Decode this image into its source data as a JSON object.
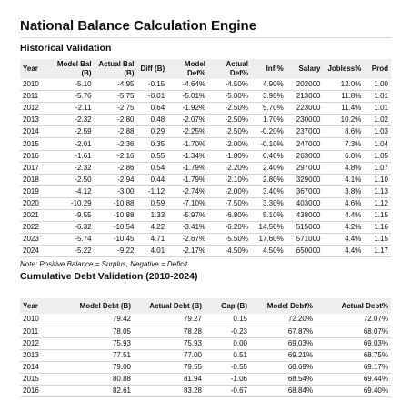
{
  "title": "National Balance Calculation Engine",
  "historical": {
    "heading": "Historical Validation",
    "columns": [
      "Year",
      "Model Bal (B)",
      "Actual Bal (B)",
      "Diff (B)",
      "Model Def%",
      "Actual Def%",
      "Infl%",
      "Salary",
      "Jobless%",
      "Prod"
    ],
    "rows": [
      [
        "2010",
        "-5.10",
        "-4.95",
        "-0.15",
        "-4.64%",
        "-4.50%",
        "4.90%",
        "202000",
        "12.0%",
        "1.00"
      ],
      [
        "2011",
        "-5.76",
        "-5.75",
        "-0.01",
        "-5.01%",
        "-5.00%",
        "3.90%",
        "213000",
        "11.8%",
        "1.01"
      ],
      [
        "2012",
        "-2.11",
        "-2.75",
        "0.64",
        "-1.92%",
        "-2.50%",
        "5.70%",
        "223000",
        "11.4%",
        "1.01"
      ],
      [
        "2013",
        "-2.32",
        "-2.80",
        "0.48",
        "-2.07%",
        "-2.50%",
        "1.70%",
        "230000",
        "10.2%",
        "1.02"
      ],
      [
        "2014",
        "-2.59",
        "-2.88",
        "0.29",
        "-2.25%",
        "-2.50%",
        "-0.20%",
        "237000",
        "8.6%",
        "1.03"
      ],
      [
        "2015",
        "-2.01",
        "-2.36",
        "0.35",
        "-1.70%",
        "-2.00%",
        "-0.10%",
        "247000",
        "7.3%",
        "1.04"
      ],
      [
        "2016",
        "-1.61",
        "-2.16",
        "0.55",
        "-1.34%",
        "-1.80%",
        "0.40%",
        "263000",
        "6.0%",
        "1.05"
      ],
      [
        "2017",
        "-2.32",
        "-2.86",
        "0.54",
        "-1.79%",
        "-2.20%",
        "2.40%",
        "297000",
        "4.8%",
        "1.07"
      ],
      [
        "2018",
        "-2.50",
        "-2.94",
        "0.44",
        "-1.79%",
        "-2.10%",
        "2.80%",
        "329000",
        "4.1%",
        "1.10"
      ],
      [
        "2019",
        "-4.12",
        "-3.00",
        "-1.12",
        "-2.74%",
        "-2.00%",
        "3.40%",
        "367000",
        "3.8%",
        "1.13"
      ],
      [
        "2020",
        "-10.29",
        "-10.88",
        "0.59",
        "-7.10%",
        "-7.50%",
        "3.30%",
        "403000",
        "4.6%",
        "1.12"
      ],
      [
        "2021",
        "-9.55",
        "-10.88",
        "1.33",
        "-5.97%",
        "-6.80%",
        "5.10%",
        "438000",
        "4.4%",
        "1.15"
      ],
      [
        "2022",
        "-6.32",
        "-10.54",
        "4.22",
        "-3.41%",
        "-6.20%",
        "14.50%",
        "515000",
        "4.2%",
        "1.16"
      ],
      [
        "2023",
        "-5.74",
        "-10.45",
        "4.71",
        "-2.67%",
        "-5.50%",
        "17.60%",
        "571000",
        "4.4%",
        "1.15"
      ],
      [
        "2024",
        "-5.22",
        "-9.22",
        "4.01",
        "-2.17%",
        "-4.50%",
        "4.50%",
        "650000",
        "4.4%",
        "1.17"
      ]
    ],
    "note": "Note: Positive Balance = Surplus, Negative = Deficit"
  },
  "debt": {
    "heading": "Cumulative Debt Validation (2010-2024)",
    "columns": [
      "Year",
      "Model Debt (B)",
      "Actual Debt (B)",
      "Gap (B)",
      "Model Debt%",
      "Actual Debt%"
    ],
    "rows": [
      [
        "2010",
        "79.42",
        "79.27",
        "0.15",
        "72.20%",
        "72.07%"
      ],
      [
        "2011",
        "78.05",
        "78.28",
        "-0.23",
        "67.87%",
        "68.07%"
      ],
      [
        "2012",
        "75.93",
        "75.93",
        "0.00",
        "69.03%",
        "69.03%"
      ],
      [
        "2013",
        "77.51",
        "77.00",
        "0.51",
        "69.21%",
        "68.75%"
      ],
      [
        "2014",
        "79.00",
        "79.55",
        "-0.55",
        "68.69%",
        "69.17%"
      ],
      [
        "2015",
        "80.88",
        "81.94",
        "-1.06",
        "68.54%",
        "69.44%"
      ],
      [
        "2016",
        "82.61",
        "83.28",
        "-0.67",
        "68.84%",
        "69.40%"
      ]
    ]
  }
}
